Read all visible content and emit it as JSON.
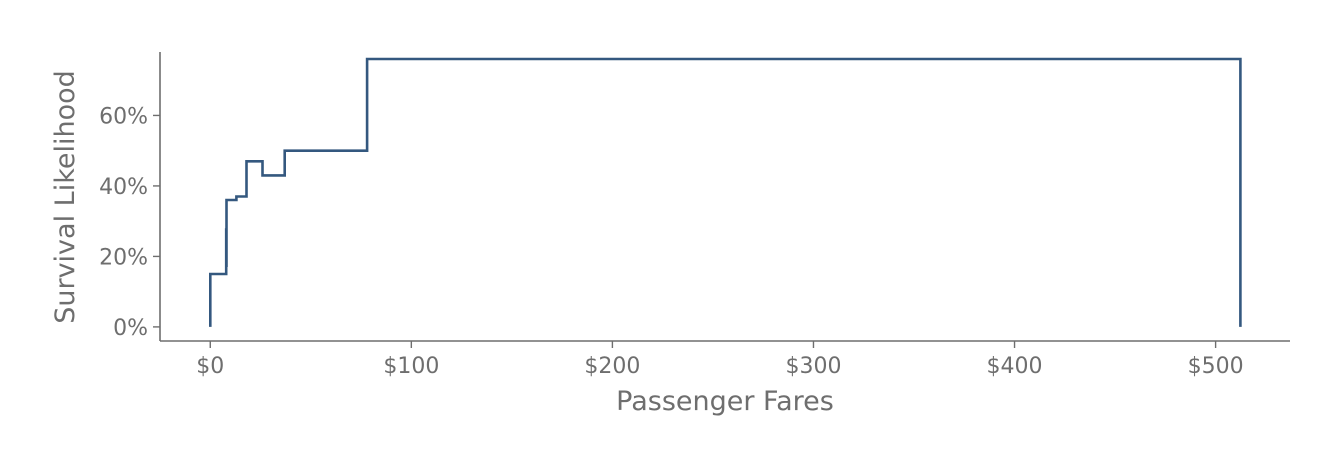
{
  "chart_data": {
    "type": "line",
    "step": true,
    "title": "",
    "xlabel": "Passenger Fares",
    "ylabel": "Survival Likelihood",
    "xlim": [
      -25,
      537
    ],
    "ylim": [
      -0.04,
      0.78
    ],
    "x_ticks": [
      0,
      100,
      200,
      300,
      400,
      500
    ],
    "x_tick_labels": [
      "$0",
      "$100",
      "$200",
      "$300",
      "$400",
      "$500"
    ],
    "y_ticks": [
      0,
      0.2,
      0.4,
      0.6
    ],
    "y_tick_labels": [
      "0%",
      "20%",
      "40%",
      "60%"
    ],
    "grid": false,
    "legend": "none",
    "color": "#34587f",
    "series": [
      {
        "x": [
          0,
          0,
          7.9,
          7.9,
          8.05,
          8.05,
          8.66,
          8.66,
          13,
          13,
          18,
          18,
          26,
          26,
          37,
          37,
          78,
          78,
          512.33,
          512.33
        ],
        "y": [
          0,
          0.15,
          0.15,
          0.28,
          0.17,
          0.36,
          0.36,
          0.36,
          0.36,
          0.37,
          0.37,
          0.47,
          0.47,
          0.43,
          0.43,
          0.5,
          0.5,
          0.76,
          0.76,
          0
        ]
      }
    ]
  }
}
